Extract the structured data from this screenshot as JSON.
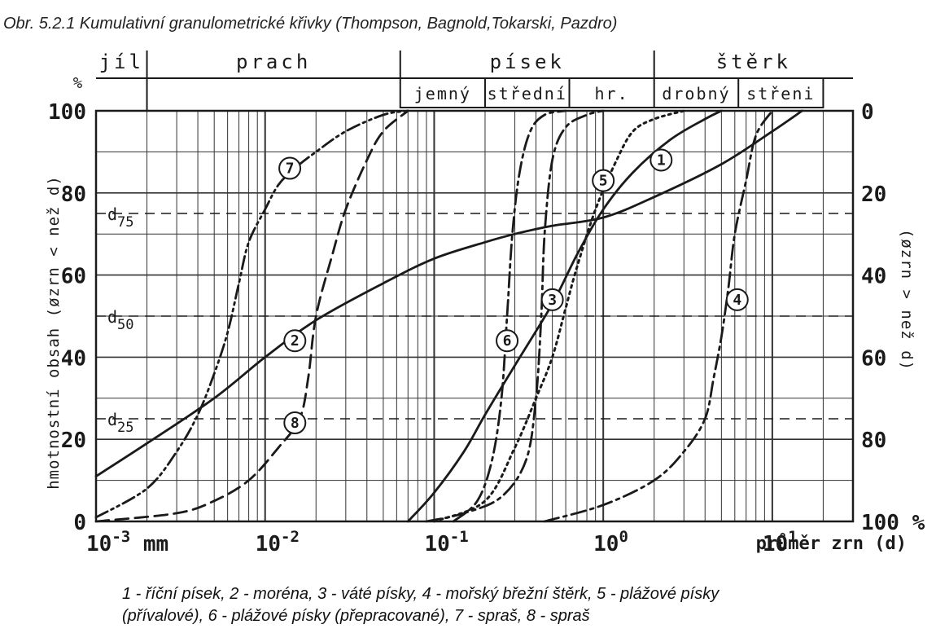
{
  "caption": "Obr. 5.2.1 Kumulativní granulometrické křivky (Thompson, Bagnold,Tokarski, Pazdro)",
  "legend_line1": "1 - říční písek, 2 - moréna, 3 - váté písky, 4 - mořský břežní štěrk, 5 - plážové písky",
  "legend_line2": "(přívalové), 6 - plážové písky (přepracované), 7 - spraš, 8 - spraš",
  "colors": {
    "ink": "#1a1a1a",
    "grid": "#333333",
    "paper": "#ffffff"
  },
  "chart_data": {
    "type": "line",
    "x_scale": "log",
    "xlim": [
      0.001,
      30
    ],
    "ylim": [
      0,
      100
    ],
    "y_ticks": [
      "0",
      "20",
      "40",
      "60",
      "80",
      "100"
    ],
    "y_right_ticks": [
      "0",
      "20",
      "40",
      "60",
      "80",
      "100 %"
    ],
    "x_ticks": [
      "10-3 mm",
      "10-2",
      "10-1",
      "100",
      "101"
    ],
    "y_unit": "%",
    "ylabel": "hmotnostní obsah (øzrn < než d)",
    "ylabel_right": "(øzrn > než d)",
    "xlabel": "průměr zrn (d)",
    "grain_classes": [
      {
        "name": "jíl",
        "from": 0.001,
        "to": 0.002
      },
      {
        "name": "prach",
        "from": 0.002,
        "to": 0.063
      },
      {
        "name": "písek",
        "from": 0.063,
        "to": 2.0
      },
      {
        "name": "štěrk",
        "from": 2.0,
        "to": 30
      }
    ],
    "sand_gravel_subclasses": [
      {
        "name": "jemný",
        "from": 0.063,
        "to": 0.2
      },
      {
        "name": "střední",
        "from": 0.2,
        "to": 0.63
      },
      {
        "name": "hr.",
        "from": 0.63,
        "to": 2.0
      },
      {
        "name": "drobný",
        "from": 2.0,
        "to": 6.3
      },
      {
        "name": "střeni",
        "from": 6.3,
        "to": 20
      }
    ],
    "reference_lines": [
      {
        "label": "d75",
        "y": 75
      },
      {
        "label": "d50",
        "y": 50
      },
      {
        "label": "d25",
        "y": 25
      }
    ],
    "series": [
      {
        "name": "1",
        "style": "solid",
        "label_at": [
          2.2,
          88
        ],
        "x": [
          0.07,
          0.1,
          0.15,
          0.2,
          0.3,
          0.5,
          0.7,
          1.0,
          1.5,
          2.5,
          4,
          5
        ],
        "y": [
          0,
          7,
          17,
          26,
          38,
          53,
          65,
          76,
          85,
          93,
          98,
          100
        ]
      },
      {
        "name": "2",
        "style": "solid",
        "label_at": [
          0.015,
          44
        ],
        "x": [
          0.001,
          0.002,
          0.005,
          0.01,
          0.02,
          0.05,
          0.1,
          0.2,
          0.3,
          0.5,
          1.0,
          2.0,
          5,
          10,
          15
        ],
        "y": [
          11,
          19,
          30,
          40,
          49,
          58,
          64,
          68,
          70,
          72,
          74,
          79,
          87,
          95,
          100
        ]
      },
      {
        "name": "3",
        "style": "dashdot",
        "label_at": [
          0.5,
          54
        ],
        "x": [
          0.09,
          0.15,
          0.25,
          0.35,
          0.4,
          0.43,
          0.45,
          0.5,
          0.6,
          0.8,
          1.0
        ],
        "y": [
          0,
          2,
          6,
          15,
          30,
          50,
          70,
          88,
          96,
          99,
          100
        ]
      },
      {
        "name": "4",
        "style": "dashdot",
        "label_at": [
          6.2,
          54
        ],
        "x": [
          0.45,
          1.0,
          2.0,
          3.0,
          4.0,
          4.5,
          5.0,
          5.5,
          6.0,
          7.0,
          8.0,
          10
        ],
        "y": [
          0,
          4,
          10,
          17,
          25,
          35,
          45,
          57,
          70,
          83,
          94,
          100
        ]
      },
      {
        "name": "5",
        "style": "dotted",
        "label_at": [
          1.0,
          83
        ],
        "x": [
          0.1,
          0.2,
          0.3,
          0.4,
          0.5,
          0.6,
          0.7,
          0.9,
          1.2,
          1.5,
          2.0,
          3.0
        ],
        "y": [
          0,
          5,
          18,
          30,
          40,
          52,
          62,
          76,
          88,
          95,
          98,
          100
        ]
      },
      {
        "name": "6",
        "style": "dashdot",
        "label_at": [
          0.27,
          44
        ],
        "x": [
          0.13,
          0.18,
          0.22,
          0.25,
          0.27,
          0.29,
          0.32,
          0.37,
          0.45,
          0.6
        ],
        "y": [
          0,
          5,
          15,
          30,
          50,
          70,
          85,
          95,
          99,
          100
        ]
      },
      {
        "name": "7",
        "style": "dashdotdot",
        "label_at": [
          0.014,
          86
        ],
        "x": [
          0.001,
          0.002,
          0.003,
          0.004,
          0.005,
          0.006,
          0.007,
          0.008,
          0.01,
          0.012,
          0.015,
          0.02,
          0.03,
          0.05,
          0.07
        ],
        "y": [
          1,
          8,
          17,
          26,
          36,
          46,
          58,
          68,
          76,
          82,
          86,
          90,
          95,
          99,
          100
        ]
      },
      {
        "name": "8",
        "style": "dashed",
        "label_at": [
          0.015,
          24
        ],
        "x": [
          0.001,
          0.003,
          0.005,
          0.008,
          0.012,
          0.016,
          0.018,
          0.02,
          0.025,
          0.03,
          0.04,
          0.05,
          0.07
        ],
        "y": [
          0,
          2,
          5,
          10,
          18,
          25,
          35,
          50,
          65,
          76,
          88,
          95,
          100
        ]
      }
    ]
  }
}
